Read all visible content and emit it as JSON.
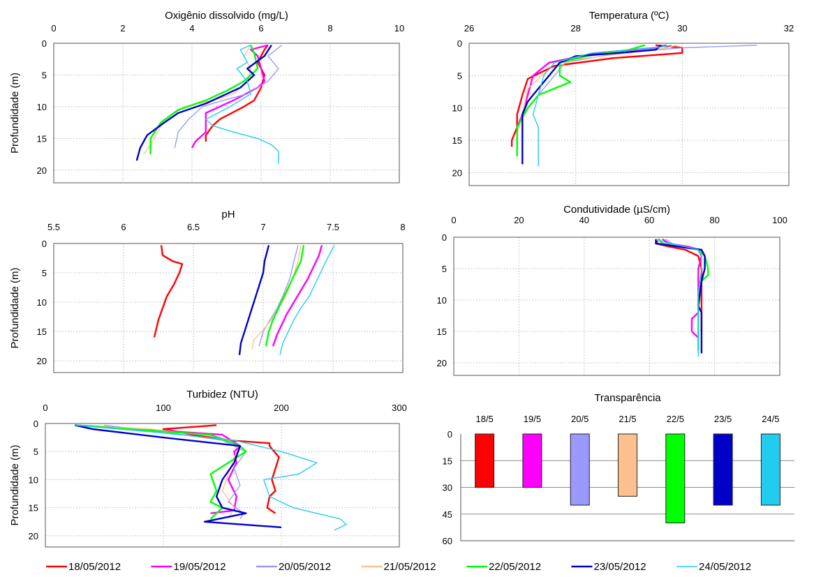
{
  "colors": {
    "18/05/2012": "#ff0000",
    "19/05/2012": "#ff00ff",
    "20/05/2012": "#9999ff",
    "21/05/2012": "#ffc090",
    "22/05/2012": "#00ff00",
    "23/05/2012": "#0000c8",
    "24/05/2012": "#22ccee"
  },
  "legend": [
    "18/05/2012",
    "19/05/2012",
    "20/05/2012",
    "21/05/2012",
    "22/05/2012",
    "23/05/2012",
    "24/05/2012"
  ],
  "chart_data": [
    {
      "type": "line",
      "title": "Oxigênio dissolvido (mg/L)",
      "ylabel": "Profundidade (m)",
      "xlim": [
        0,
        10
      ],
      "xticks": [
        0,
        2,
        4,
        6,
        8,
        10
      ],
      "ylim": [
        0,
        22
      ],
      "yticks": [
        0,
        5,
        10,
        15,
        20
      ],
      "y_inverted": true,
      "series": [
        {
          "name": "18/05/2012",
          "x": [
            6.2,
            6.1,
            6.0,
            5.9,
            6.1,
            6.0,
            5.8,
            5.5,
            4.8,
            4.6,
            4.4,
            4.4
          ],
          "y": [
            0.3,
            1,
            2,
            3,
            5,
            7,
            9,
            10,
            12,
            13,
            14.5,
            15.5
          ]
        },
        {
          "name": "19/05/2012",
          "x": [
            6.2,
            5.7,
            5.9,
            6.0,
            6.1,
            5.9,
            5.2,
            4.4,
            4.4,
            4.4,
            4.1,
            4.0
          ],
          "y": [
            0.3,
            1,
            2,
            4,
            6,
            7,
            9,
            11,
            12,
            14,
            15.5,
            16.5
          ]
        },
        {
          "name": "20/05/2012",
          "x": [
            6.6,
            6.2,
            6.5,
            6.2,
            5.6,
            4.9,
            4.3,
            3.9,
            3.6,
            3.5
          ],
          "y": [
            0.3,
            2,
            4,
            6,
            8,
            9,
            10,
            12,
            14,
            16.5
          ]
        },
        {
          "name": "21/05/2012",
          "x": [
            5.7,
            5.5,
            5.7,
            5.6,
            5.2,
            4.6,
            3.8,
            3.2,
            3.0,
            2.8,
            2.6
          ],
          "y": [
            0.3,
            2,
            4,
            6,
            8,
            9,
            10,
            12,
            14,
            16,
            17.5
          ]
        },
        {
          "name": "22/05/2012",
          "x": [
            5.7,
            5.8,
            5.9,
            5.5,
            5.0,
            4.4,
            3.6,
            3.1,
            2.8,
            2.8
          ],
          "y": [
            0.3,
            1.5,
            4,
            6,
            7.5,
            9,
            10.5,
            12.5,
            15,
            17.5
          ]
        },
        {
          "name": "23/05/2012",
          "x": [
            6.3,
            6.1,
            5.6,
            5.8,
            5.4,
            5.0,
            4.4,
            3.6,
            3.2,
            2.7,
            2.5,
            2.4
          ],
          "y": [
            0.3,
            2,
            4,
            5,
            7,
            8,
            9.5,
            11,
            12.5,
            14.5,
            16.5,
            18.5
          ]
        },
        {
          "name": "24/05/2012",
          "x": [
            5.7,
            5.4,
            5.6,
            5.3,
            5.6,
            5.7,
            5.1,
            4.4,
            4.6,
            5.2,
            5.9,
            6.3,
            6.5,
            6.5
          ],
          "y": [
            0.3,
            1,
            3,
            4,
            6,
            8,
            10,
            12,
            13,
            14,
            15,
            16,
            17,
            19
          ]
        }
      ]
    },
    {
      "type": "line",
      "title": "Temperatura (ºC)",
      "ylabel": "",
      "xlim": [
        26,
        32
      ],
      "xticks": [
        26,
        28,
        30,
        32
      ],
      "ylim": [
        0,
        22
      ],
      "yticks": [
        0,
        5,
        10,
        15,
        20
      ],
      "y_inverted": true,
      "series": [
        {
          "name": "18/05/2012",
          "x": [
            29.5,
            30.0,
            30.0,
            28.7,
            27.6,
            27.1,
            27.0,
            26.9,
            26.9,
            26.8,
            26.8
          ],
          "y": [
            0.3,
            0.7,
            1.5,
            2.3,
            3.5,
            5.5,
            8,
            11,
            13,
            15,
            16
          ]
        },
        {
          "name": "19/05/2012",
          "x": [
            29.7,
            29.5,
            28.4,
            27.5,
            27.2,
            27.1,
            27.0,
            26.9,
            26.9,
            26.9
          ],
          "y": [
            0.3,
            0.7,
            1.5,
            3,
            5,
            8,
            11,
            13,
            15,
            16.5
          ]
        },
        {
          "name": "20/05/2012",
          "x": [
            31.4,
            30.0,
            28.8,
            27.8,
            27.6,
            27.3,
            27.0,
            26.9,
            26.9
          ],
          "y": [
            0.3,
            0.7,
            1.5,
            3,
            5,
            8,
            11,
            14,
            17
          ]
        },
        {
          "name": "21/05/2012",
          "x": [
            29.9,
            29.7,
            29.0,
            28.0,
            27.5,
            27.1,
            27.0,
            26.9,
            26.9
          ],
          "y": [
            0.3,
            0.7,
            1.5,
            2.5,
            4,
            7,
            11,
            14,
            17.5
          ]
        },
        {
          "name": "22/05/2012",
          "x": [
            29.3,
            29.0,
            28.2,
            27.7,
            27.7,
            27.9,
            27.6,
            27.3,
            27.1,
            26.9,
            26.9
          ],
          "y": [
            0.3,
            1,
            2,
            3,
            5,
            6,
            7,
            8,
            10,
            13,
            17.5
          ]
        },
        {
          "name": "23/05/2012",
          "x": [
            29.6,
            29.5,
            28.8,
            28.0,
            27.7,
            27.5,
            27.3,
            27.1,
            27.0,
            27.0,
            27.0
          ],
          "y": [
            0.3,
            1,
            1.5,
            2,
            3,
            5,
            7,
            9,
            11,
            14,
            18.7
          ]
        },
        {
          "name": "24/05/2012",
          "x": [
            29.8,
            29.5,
            28.3,
            27.6,
            27.4,
            27.3,
            27.2,
            27.3,
            27.3,
            27.3
          ],
          "y": [
            0.3,
            0.7,
            1.5,
            3,
            5,
            8,
            11,
            13,
            15,
            19
          ]
        }
      ]
    },
    {
      "type": "line",
      "title": "pH",
      "ylabel": "Profundidade (m)",
      "xlim": [
        5.5,
        8
      ],
      "xticks": [
        5.5,
        6,
        6.5,
        7,
        7.5,
        8
      ],
      "ylim": [
        0,
        22
      ],
      "yticks": [
        0,
        5,
        10,
        15,
        20
      ],
      "y_inverted": true,
      "series": [
        {
          "name": "18/05/2012",
          "x": [
            6.27,
            6.28,
            6.35,
            6.42,
            6.4,
            6.36,
            6.31,
            6.28,
            6.25,
            6.23,
            6.22
          ],
          "y": [
            0.3,
            2,
            3,
            3.5,
            5,
            7,
            9,
            11,
            13,
            15,
            16
          ]
        },
        {
          "name": "19/05/2012",
          "x": [
            7.42,
            7.4,
            7.36,
            7.32,
            7.27,
            7.22,
            7.17,
            7.13,
            7.1,
            7.07
          ],
          "y": [
            0.3,
            2,
            4,
            6,
            8,
            10,
            12,
            14,
            15.5,
            17.5
          ]
        },
        {
          "name": "20/05/2012",
          "x": [
            7.25,
            7.22,
            7.19,
            7.14,
            7.1,
            7.05,
            7.0,
            6.97
          ],
          "y": [
            0.3,
            3,
            6,
            9,
            11,
            13,
            15,
            17.5
          ]
        },
        {
          "name": "21/05/2012",
          "x": [
            7.27,
            7.25,
            7.21,
            7.16,
            7.11,
            7.06,
            6.99,
            6.93,
            6.92
          ],
          "y": [
            0.3,
            3,
            6,
            9,
            11,
            13,
            15,
            16.5,
            18
          ]
        },
        {
          "name": "22/05/2012",
          "x": [
            7.29,
            7.27,
            7.23,
            7.19,
            7.15,
            7.11,
            7.07,
            7.04,
            7.02
          ],
          "y": [
            0.3,
            3,
            5,
            7,
            9,
            11,
            13,
            15,
            17.5
          ]
        },
        {
          "name": "23/05/2012",
          "x": [
            7.04,
            7.01,
            7.0,
            6.96,
            6.92,
            6.88,
            6.84,
            6.83
          ],
          "y": [
            0.3,
            3,
            5,
            8,
            11,
            14,
            17,
            19
          ]
        },
        {
          "name": "24/05/2012",
          "x": [
            7.51,
            7.45,
            7.39,
            7.33,
            7.27,
            7.22,
            7.18,
            7.14,
            7.12
          ],
          "y": [
            0.3,
            3,
            6,
            9,
            11,
            13,
            15,
            17,
            19
          ]
        }
      ]
    },
    {
      "type": "line",
      "title": "Condutividade (µS/cm)",
      "ylabel": "",
      "xlim": [
        0,
        100
      ],
      "xticks": [
        0,
        20,
        40,
        60,
        80,
        100
      ],
      "ylim": [
        0,
        22
      ],
      "yticks": [
        0,
        5,
        10,
        15,
        20
      ],
      "y_inverted": true,
      "series": [
        {
          "name": "18/05/2012",
          "x": [
            63,
            62,
            66,
            71,
            75,
            76,
            76,
            76
          ],
          "y": [
            0.3,
            1,
            1.5,
            2,
            3,
            5,
            10,
            15
          ]
        },
        {
          "name": "19/05/2012",
          "x": [
            64,
            66,
            72,
            75,
            76,
            75,
            75,
            75,
            73,
            73,
            75
          ],
          "y": [
            0.3,
            1,
            1.5,
            2,
            3,
            5,
            9,
            12,
            13,
            15,
            16
          ]
        },
        {
          "name": "20/05/2012",
          "x": [
            65,
            67,
            71,
            75,
            76,
            76,
            75,
            75,
            75
          ],
          "y": [
            0.3,
            1,
            1.5,
            2,
            3,
            5,
            9,
            14,
            19
          ]
        },
        {
          "name": "21/05/2012",
          "x": [
            62,
            64,
            70,
            75,
            76,
            76,
            75,
            75,
            75
          ],
          "y": [
            0.3,
            1,
            1.5,
            2,
            3,
            5,
            9,
            14,
            18
          ]
        },
        {
          "name": "22/05/2012",
          "x": [
            63,
            64,
            70,
            75,
            77,
            78,
            78,
            76,
            75,
            75,
            75
          ],
          "y": [
            0.3,
            1,
            1.5,
            2,
            3,
            5,
            6,
            7,
            9,
            14,
            18
          ]
        },
        {
          "name": "23/05/2012",
          "x": [
            62,
            62,
            69,
            76,
            77,
            77,
            76,
            75,
            76,
            76,
            76
          ],
          "y": [
            0.3,
            1,
            1.5,
            2,
            3,
            5,
            7,
            11,
            12,
            15,
            18.5
          ]
        },
        {
          "name": "24/05/2012",
          "x": [
            62,
            66,
            71,
            75,
            76,
            76,
            75,
            75,
            75
          ],
          "y": [
            0.3,
            1,
            1.5,
            2,
            3,
            5,
            9,
            14,
            19
          ]
        }
      ]
    },
    {
      "type": "line",
      "title": "Turbidez (NTU)",
      "ylabel": "Profundidade (m)",
      "xlim": [
        0,
        300
      ],
      "xticks": [
        0,
        100,
        200,
        300
      ],
      "ylim": [
        0,
        22
      ],
      "yticks": [
        0,
        5,
        10,
        15,
        20
      ],
      "y_inverted": true,
      "series": [
        {
          "name": "18/05/2012",
          "x": [
            145,
            100,
            125,
            155,
            190,
            190,
            198,
            195,
            192,
            195,
            190,
            188,
            195
          ],
          "y": [
            0.3,
            1,
            2,
            3,
            3.5,
            4,
            6,
            8,
            10,
            12,
            13,
            15,
            16
          ]
        },
        {
          "name": "19/05/2012",
          "x": [
            25,
            80,
            150,
            165,
            160,
            162,
            155,
            162,
            160,
            140
          ],
          "y": [
            0.3,
            1,
            2,
            4,
            5,
            7,
            10,
            13,
            15.5,
            16
          ]
        },
        {
          "name": "20/05/2012",
          "x": [
            50,
            100,
            150,
            170,
            160,
            165,
            155,
            168,
            165
          ],
          "y": [
            0.3,
            1.5,
            3,
            5,
            8,
            11,
            14,
            16,
            17
          ]
        },
        {
          "name": "21/05/2012",
          "x": [
            25,
            90,
            150,
            165,
            160,
            155,
            150,
            160,
            155
          ],
          "y": [
            0.3,
            1,
            2.5,
            4,
            6,
            9,
            12,
            15,
            17
          ]
        },
        {
          "name": "22/05/2012",
          "x": [
            25,
            70,
            140,
            165,
            170,
            155,
            140,
            145,
            140,
            150,
            140
          ],
          "y": [
            0.3,
            1,
            2,
            4,
            5,
            7,
            9,
            12,
            14,
            15,
            17
          ]
        },
        {
          "name": "23/05/2012",
          "x": [
            25,
            40,
            80,
            100,
            165,
            160,
            150,
            145,
            150,
            170,
            135,
            200
          ],
          "y": [
            0.3,
            1,
            2,
            2.5,
            4,
            7,
            10,
            13,
            15,
            16,
            17.5,
            18.5
          ]
        },
        {
          "name": "24/05/2012",
          "x": [
            25,
            90,
            160,
            200,
            230,
            215,
            185,
            190,
            210,
            250,
            255,
            245
          ],
          "y": [
            0.3,
            1.5,
            3,
            5,
            7,
            9,
            10,
            13,
            15,
            17,
            18,
            19
          ]
        }
      ]
    },
    {
      "type": "bar",
      "title": "Transparência",
      "categories": [
        "18/5",
        "19/5",
        "20/5",
        "21/5",
        "22/5",
        "23/5",
        "24/5"
      ],
      "values": [
        30,
        30,
        40,
        35,
        50,
        40,
        40
      ],
      "ylim": [
        0,
        60
      ],
      "yticks": [
        0,
        15,
        30,
        45,
        60
      ],
      "y_inverted": true
    }
  ]
}
